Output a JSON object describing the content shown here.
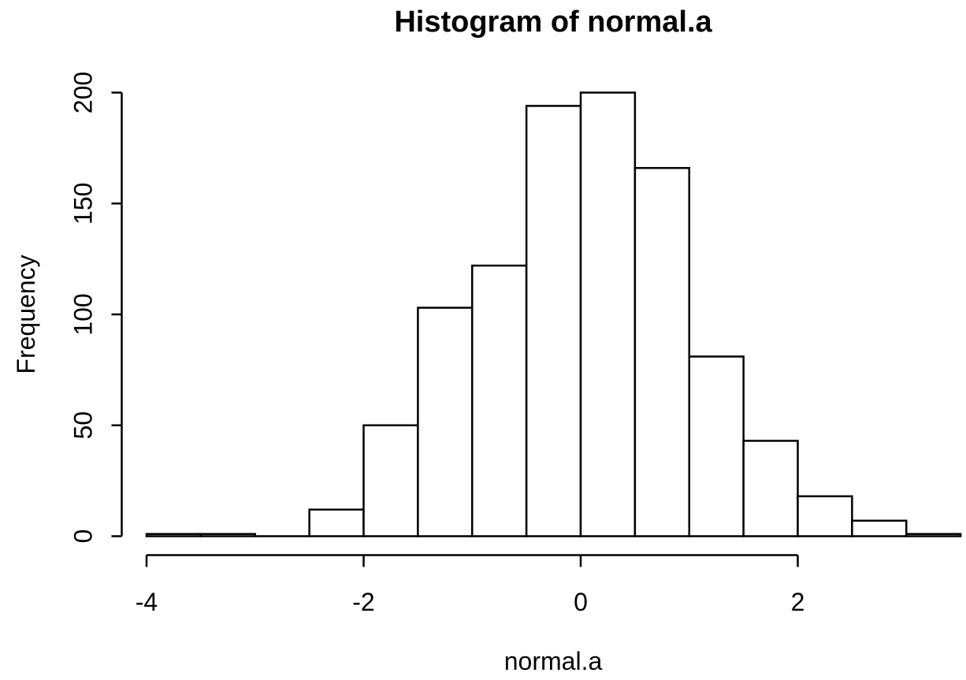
{
  "chart_data": {
    "type": "bar",
    "subtype": "histogram",
    "title": "Histogram of normal.a",
    "xlabel": "normal.a",
    "ylabel": "Frequency",
    "bin_start": -4,
    "bin_width": 0.5,
    "bin_edges": [
      -4,
      -3.5,
      -3,
      -2.5,
      -2,
      -1.5,
      -1,
      -0.5,
      0,
      0.5,
      1,
      1.5,
      2,
      2.5,
      3,
      3.5
    ],
    "counts": [
      1,
      1,
      0,
      12,
      50,
      103,
      122,
      194,
      200,
      166,
      81,
      43,
      18,
      7,
      1
    ],
    "x_ticks": [
      -4,
      -2,
      0,
      2
    ],
    "y_ticks": [
      0,
      50,
      100,
      150,
      200
    ],
    "xlim": [
      -4,
      3.5
    ],
    "ylim": [
      0,
      200
    ],
    "grid": false,
    "legend": null,
    "colors": {
      "bar_fill": "#ffffff",
      "bar_stroke": "#000000",
      "axis": "#000000",
      "text": "#000000",
      "background": "#ffffff"
    }
  }
}
